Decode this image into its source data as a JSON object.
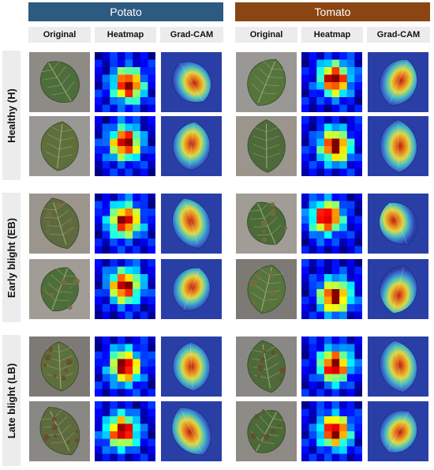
{
  "colors": {
    "potato_banner": "#2d5a80",
    "tomato_banner": "#8b4513"
  },
  "groups": [
    {
      "key": "potato",
      "label": "Potato"
    },
    {
      "key": "tomato",
      "label": "Tomato"
    }
  ],
  "column_headers": [
    "Original",
    "Heatmap",
    "Grad-CAM"
  ],
  "row_labels": [
    "Healthy (H)",
    "Early blight (EB)",
    "Late blight (LB)"
  ],
  "panel_types": [
    "original-leaf-photo",
    "heatmap-grid",
    "grad-cam-overlay"
  ]
}
